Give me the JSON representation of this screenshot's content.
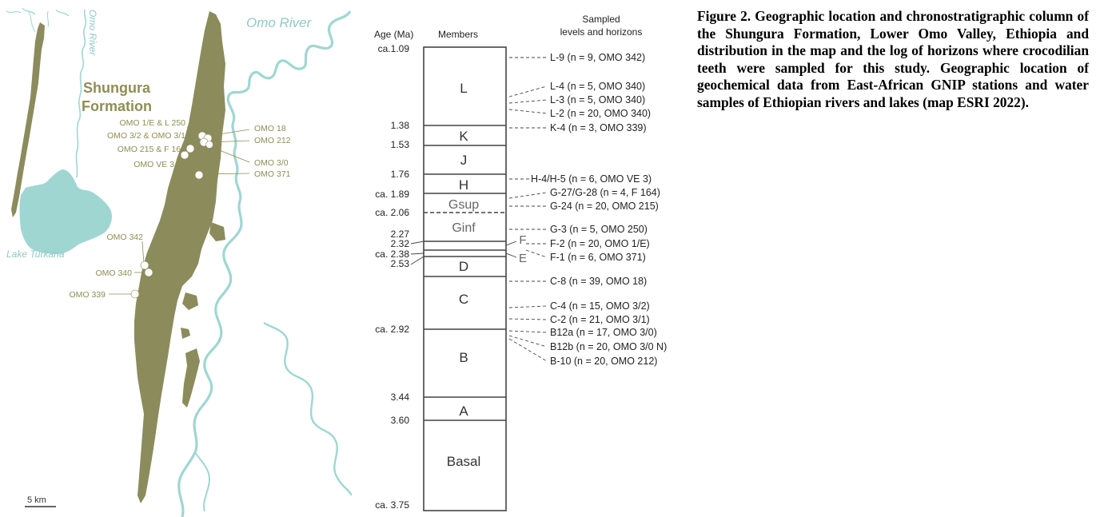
{
  "caption": "Figure 2. Geographic location and chronostratigraphic column of the Shungura Formation, Lower Omo Valley, Ethiopia and distribution in the map and the log of horizons where crocodilian teeth were sampled for this study. Geographic location of geochemical data from East-African GNIP stations and water samples of Ethiopian rivers and lakes (map ESRI 2022).",
  "map": {
    "inset_river_label": "Omo River",
    "inset_lake_label": "Lake Turkana",
    "river_label": "Omo River",
    "formation_label_line1": "Shungura",
    "formation_label_line2": "Formation",
    "scale_label": "5 km",
    "sites": [
      {
        "label": "OMO 1/E & L 250"
      },
      {
        "label": "OMO 3/2 & OMO 3/1"
      },
      {
        "label": "OMO 215 & F 164"
      },
      {
        "label": "OMO VE 3"
      },
      {
        "label": "OMO 18"
      },
      {
        "label": "OMO 212"
      },
      {
        "label": "OMO 3/0"
      },
      {
        "label": "OMO 371"
      },
      {
        "label": "OMO 342"
      },
      {
        "label": "OMO 340"
      },
      {
        "label": "OMO 339"
      }
    ],
    "colors": {
      "formation": "#8b8b5c",
      "water": "#9fd6d2",
      "label": "#8e8e55"
    }
  },
  "column": {
    "header_age": "Age (Ma)",
    "header_members": "Members",
    "header_sampled_line1": "Sampled",
    "header_sampled_line2": "levels and horizons",
    "ages": [
      "ca.1.09",
      "1.38",
      "1.53",
      "1.76",
      "ca. 1.89",
      "ca. 2.06",
      "2.27",
      "2.32",
      "ca. 2.38",
      "2.53",
      "ca. 2.92",
      "3.44",
      "3.60",
      "ca. 3.75"
    ],
    "members": [
      "L",
      "K",
      "J",
      "H",
      "Gsup",
      "Ginf",
      "F",
      "E",
      "D",
      "C",
      "B",
      "A",
      "Basal"
    ],
    "samples": [
      "L-9 (n = 9, OMO 342)",
      "L-4 (n = 5, OMO 340)",
      "L-3 (n = 5, OMO 340)",
      "L-2 (n = 20, OMO 340)",
      "K-4 (n = 3, OMO 339)",
      "H-4/H-5 (n = 6, OMO VE 3)",
      "G-27/G-28 (n = 4, F 164)",
      "G-24 (n = 20, OMO 215)",
      "G-3 (n = 5, OMO 250)",
      "F-2 (n = 20, OMO 1/E)",
      "F-1 (n = 6, OMO 371)",
      "C-8 (n = 39, OMO 18)",
      "C-4 (n = 15, OMO 3/2)",
      "C-2 (n = 21, OMO 3/1)",
      "B12a (n = 17, OMO 3/0)",
      "B12b (n = 20, OMO 3/0 N)",
      "B-10 (n = 20, OMO 212)"
    ]
  }
}
